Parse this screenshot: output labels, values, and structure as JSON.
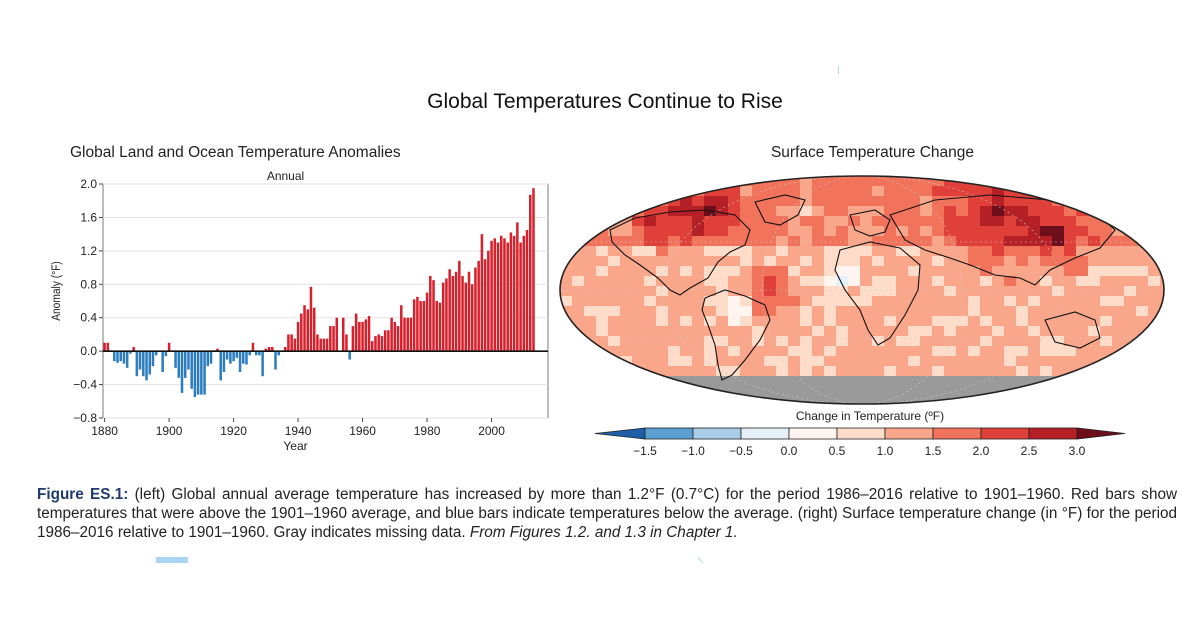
{
  "title": "Global Temperatures Continue to Rise",
  "chart_data": {
    "type": "bar",
    "title": "Global Land and Ocean Temperature Anomalies",
    "subtitle": "Annual",
    "xlabel": "Year",
    "ylabel": "Anomaly (°F)",
    "ylim": [
      -0.8,
      2.0
    ],
    "yticks": [
      "2.0",
      "1.6",
      "1.2",
      "0.8",
      "0.4",
      "0.0",
      "−0.4",
      "−0.8"
    ],
    "xticks": [
      "1880",
      "1900",
      "1920",
      "1940",
      "1960",
      "1980",
      "2000"
    ],
    "xlim": [
      1879.5,
      2017.5
    ],
    "positive_color": "#d7202b",
    "negative_color": "#2b7cc0",
    "grid": true,
    "series": [
      {
        "x_start": 1880,
        "values": [
          0.1,
          0.1,
          0.01,
          -0.12,
          -0.14,
          -0.12,
          -0.15,
          -0.2,
          -0.03,
          0.05,
          -0.3,
          -0.22,
          -0.3,
          -0.35,
          -0.28,
          -0.18,
          -0.05,
          0.0,
          -0.25,
          -0.06,
          0.1,
          0.0,
          -0.2,
          -0.32,
          -0.5,
          -0.32,
          -0.22,
          -0.45,
          -0.55,
          -0.52,
          -0.52,
          -0.52,
          -0.18,
          -0.15,
          0.01,
          0.03,
          -0.35,
          -0.25,
          -0.1,
          -0.15,
          -0.12,
          -0.08,
          -0.25,
          -0.15,
          -0.16,
          -0.05,
          0.1,
          -0.05,
          -0.05,
          -0.3,
          0.03,
          0.05,
          0.05,
          -0.22,
          -0.05,
          0.0,
          0.05,
          0.2,
          0.2,
          0.15,
          0.35,
          0.45,
          0.55,
          0.5,
          0.77,
          0.52,
          0.2,
          0.15,
          0.15,
          0.15,
          0.3,
          0.3,
          0.4,
          0.0,
          0.4,
          0.2,
          -0.1,
          0.3,
          0.45,
          0.35,
          0.35,
          0.38,
          0.42,
          0.12,
          0.18,
          0.2,
          0.18,
          0.25,
          0.25,
          0.4,
          0.35,
          0.3,
          0.55,
          0.4,
          0.4,
          0.4,
          0.62,
          0.65,
          0.6,
          0.6,
          0.7,
          0.9,
          0.85,
          0.6,
          0.58,
          0.82,
          0.87,
          0.98,
          0.9,
          0.95,
          1.08,
          0.9,
          0.82,
          0.95,
          0.8,
          1.0,
          1.08,
          1.4,
          1.1,
          1.2,
          1.32,
          1.35,
          1.3,
          1.38,
          1.35,
          1.3,
          1.42,
          1.38,
          1.54,
          1.3,
          1.38,
          1.45,
          1.87,
          1.95
        ]
      }
    ]
  },
  "map": {
    "title": "Surface Temperature Change",
    "colorbar_title": "Change in Temperature (ºF)",
    "colorbar_ticks": [
      "−1.5",
      "−1.0",
      "−0.5",
      "0.0",
      "0.5",
      "1.0",
      "1.5",
      "2.0",
      "2.5",
      "3.0"
    ],
    "colorbar_colors": [
      "#1f5fa8",
      "#5b9fd3",
      "#a9cde9",
      "#e6f0f9",
      "#fff5f0",
      "#fddcc9",
      "#f9a68a",
      "#f2735b",
      "#e0403a",
      "#b51f26",
      "#6d0f1a"
    ],
    "missing_color": "#9a9a9a"
  },
  "caption": {
    "label": "Figure ES.1:",
    "text": " (left) Global annual average temperature has increased by more than 1.2°F (0.7°C) for the period 1986–2016 relative to 1901–1960. Red bars show temperatures that were above the 1901–1960 average, and blue bars indicate temperatures below the average. (right) Surface temperature change (in °F) for the period 1986–2016 relative to 1901–1960. Gray indicates missing data. ",
    "source": "From Figures 1.2. and 1.3 in Chapter 1."
  }
}
